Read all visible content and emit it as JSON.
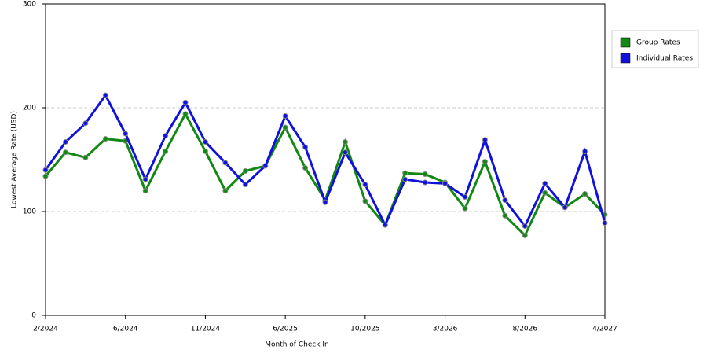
{
  "chart_data": {
    "type": "line",
    "x_label": "Month of Check In",
    "y_label": "Lowest Average Rate (USD)",
    "categories": [
      "2/2024",
      null,
      null,
      null,
      "6/2024",
      null,
      null,
      null,
      "11/2024",
      null,
      null,
      null,
      "6/2025",
      null,
      null,
      null,
      "10/2025",
      null,
      null,
      null,
      "3/2026",
      null,
      null,
      null,
      "8/2026",
      null,
      null,
      null,
      "4/2027"
    ],
    "series": [
      {
        "name": "Group Rates",
        "color": "#118811",
        "values": [
          134,
          157,
          152,
          170,
          168,
          120,
          158,
          194,
          158,
          120,
          139,
          144,
          181,
          142,
          111,
          167,
          110,
          87,
          137,
          136,
          128,
          103,
          148,
          96,
          77,
          118,
          104,
          117,
          97
        ]
      },
      {
        "name": "Individual Rates",
        "color": "#1111dd",
        "values": [
          140,
          167,
          185,
          212,
          175,
          131,
          173,
          205,
          167,
          147,
          126,
          144,
          192,
          162,
          109,
          157,
          126,
          87,
          131,
          128,
          127,
          114,
          169,
          111,
          86,
          127,
          104,
          158,
          89
        ]
      }
    ],
    "ylim": [
      0,
      300
    ],
    "yticks": [
      0,
      100,
      200,
      300
    ],
    "grid": true,
    "legend": "top-right"
  }
}
